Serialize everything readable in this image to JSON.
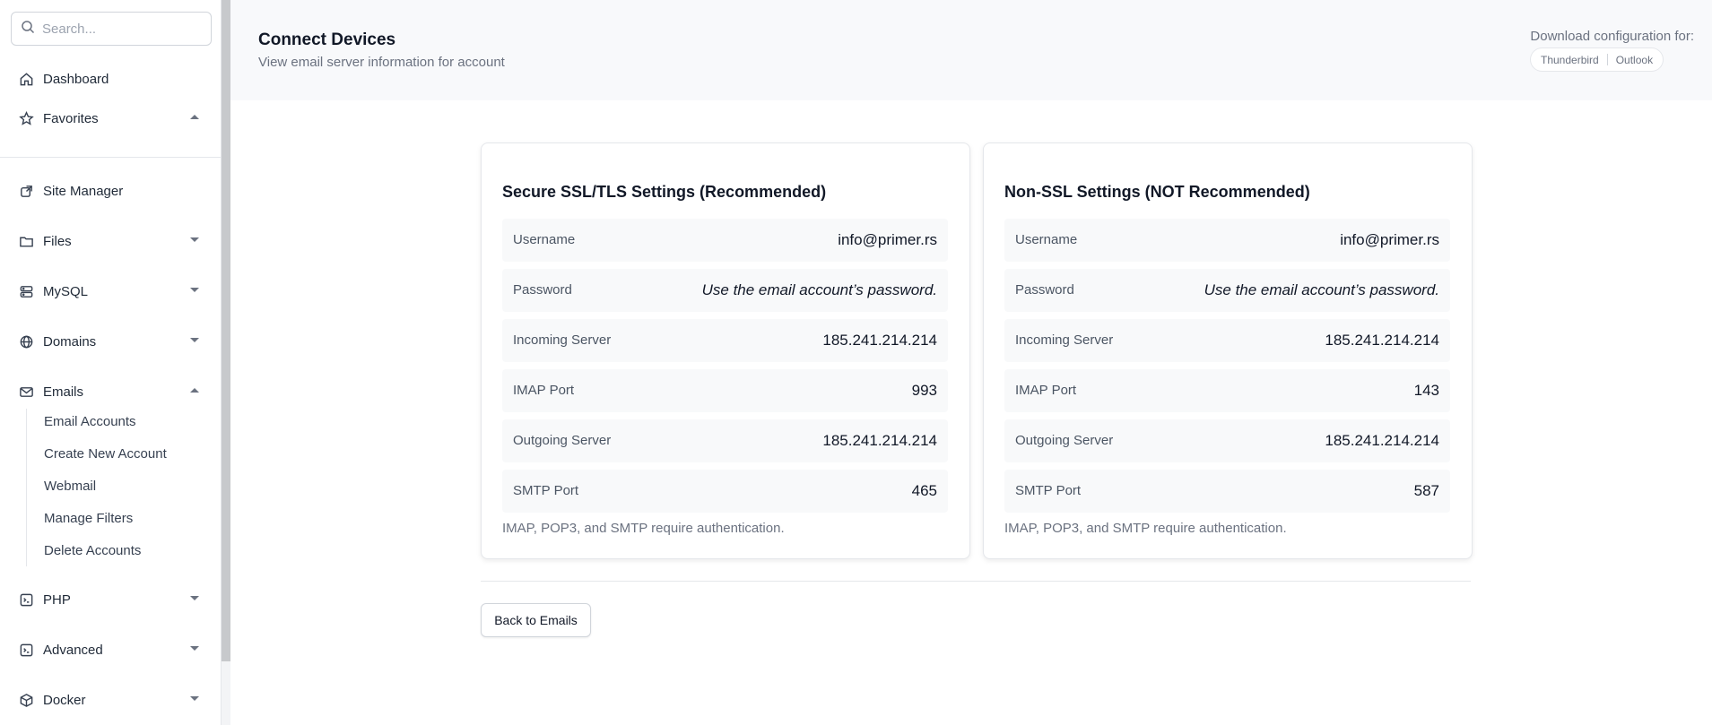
{
  "sidebar": {
    "search_placeholder": "Search...",
    "items": [
      {
        "label": "Dashboard",
        "icon": "home-icon"
      },
      {
        "label": "Favorites",
        "icon": "star-icon"
      },
      {
        "label": "Site Manager",
        "icon": "external-link-icon"
      },
      {
        "label": "Files",
        "icon": "folder-icon"
      },
      {
        "label": "MySQL",
        "icon": "database-icon"
      },
      {
        "label": "Domains",
        "icon": "globe-icon"
      },
      {
        "label": "Emails",
        "icon": "mail-icon"
      },
      {
        "label": "PHP",
        "icon": "terminal-icon"
      },
      {
        "label": "Advanced",
        "icon": "code-terminal-icon"
      },
      {
        "label": "Docker",
        "icon": "cube-icon"
      }
    ],
    "email_subitems": [
      "Email Accounts",
      "Create New Account",
      "Webmail",
      "Manage Filters",
      "Delete Accounts"
    ]
  },
  "header": {
    "title": "Connect Devices",
    "subtitle": "View email server information for account",
    "download_label": "Download configuration for:",
    "download_options": [
      "Thunderbird",
      "Outlook"
    ]
  },
  "cards": [
    {
      "title": "Secure SSL/TLS Settings (Recommended)",
      "rows": [
        {
          "label": "Username",
          "value": "info@primer.rs"
        },
        {
          "label": "Password",
          "value": "Use the email account’s password."
        },
        {
          "label": "Incoming Server",
          "value": "185.241.214.214"
        },
        {
          "label": "IMAP Port",
          "value": "993"
        },
        {
          "label": "Outgoing Server",
          "value": "185.241.214.214"
        },
        {
          "label": "SMTP Port",
          "value": "465"
        }
      ],
      "note": "IMAP, POP3, and SMTP require authentication."
    },
    {
      "title": "Non-SSL Settings (NOT Recommended)",
      "rows": [
        {
          "label": "Username",
          "value": "info@primer.rs"
        },
        {
          "label": "Password",
          "value": "Use the email account’s password."
        },
        {
          "label": "Incoming Server",
          "value": "185.241.214.214"
        },
        {
          "label": "IMAP Port",
          "value": "143"
        },
        {
          "label": "Outgoing Server",
          "value": "185.241.214.214"
        },
        {
          "label": "SMTP Port",
          "value": "587"
        }
      ],
      "note": "IMAP, POP3, and SMTP require authentication."
    }
  ],
  "back_button": "Back to Emails"
}
